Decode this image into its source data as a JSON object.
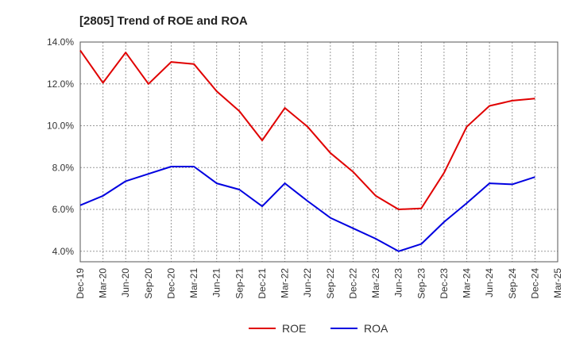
{
  "chart_data": {
    "type": "line",
    "title": "[2805]  Trend of ROE and ROA",
    "xlabel": "",
    "ylabel": "",
    "ylim": [
      3.5,
      14.0
    ],
    "yticks": [
      "4.0%",
      "6.0%",
      "8.0%",
      "10.0%",
      "12.0%",
      "14.0%"
    ],
    "ytick_values": [
      4,
      6,
      8,
      10,
      12,
      14
    ],
    "grid": true,
    "legend_position": "bottom-center",
    "x": [
      "Dec-19",
      "Mar-20",
      "Jun-20",
      "Sep-20",
      "Dec-20",
      "Mar-21",
      "Jun-21",
      "Sep-21",
      "Dec-21",
      "Mar-22",
      "Jun-22",
      "Sep-22",
      "Dec-22",
      "Mar-23",
      "Jun-23",
      "Sep-23",
      "Dec-23",
      "Mar-24",
      "Jun-24",
      "Sep-24",
      "Dec-24",
      "Mar-25"
    ],
    "series": [
      {
        "name": "ROE",
        "color": "#e00000",
        "values": [
          13.6,
          12.05,
          13.5,
          12.0,
          13.05,
          12.95,
          11.65,
          10.7,
          9.3,
          10.85,
          9.95,
          8.7,
          7.8,
          6.65,
          6.0,
          6.05,
          7.75,
          9.95,
          10.95,
          11.2,
          11.3,
          null
        ]
      },
      {
        "name": "ROA",
        "color": "#0000e0",
        "values": [
          6.2,
          6.65,
          7.35,
          7.7,
          8.05,
          8.05,
          7.25,
          6.95,
          6.15,
          7.25,
          6.4,
          5.6,
          5.1,
          4.6,
          4.0,
          4.35,
          5.4,
          6.3,
          7.25,
          7.2,
          7.55,
          null
        ]
      }
    ]
  }
}
